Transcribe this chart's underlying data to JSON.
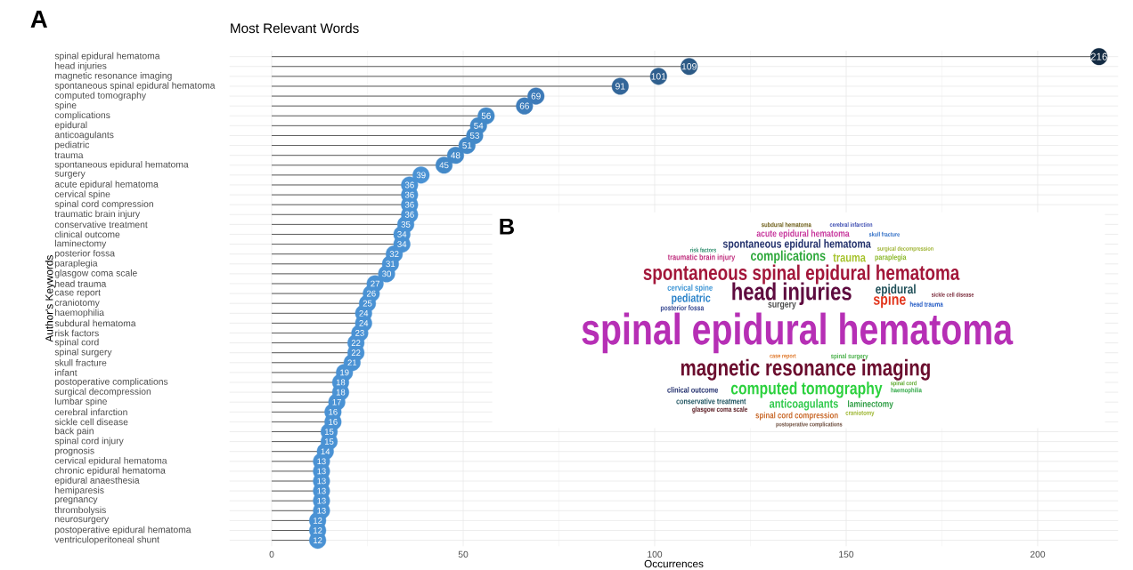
{
  "chart_data": [
    {
      "type": "lollipop",
      "title": "Most Relevant Words",
      "xlabel": "Occurrences",
      "ylabel": "Author's Keywords",
      "annotations": [
        "A"
      ],
      "categories": [
        "spinal epidural hematoma",
        "head injuries",
        "magnetic resonance imaging",
        "spontaneous spinal epidural hematoma",
        "computed tomography",
        "spine",
        "complications",
        "epidural",
        "anticoagulants",
        "pediatric",
        "trauma",
        "spontaneous epidural hematoma",
        "surgery",
        "acute epidural hematoma",
        "cervical spine",
        "spinal cord compression",
        "traumatic brain injury",
        "conservative treatment",
        "clinical outcome",
        "laminectomy",
        "posterior fossa",
        "paraplegia",
        "glasgow coma scale",
        "head trauma",
        "case report",
        "craniotomy",
        "haemophilia",
        "subdural hematoma",
        "risk factors",
        "spinal cord",
        "spinal surgery",
        "skull fracture",
        "infant",
        "postoperative complications",
        "surgical decompression",
        "lumbar spine",
        "cerebral infarction",
        "sickle cell disease",
        "back pain",
        "spinal cord injury",
        "prognosis",
        "cervical epidural hematoma",
        "chronic epidural hematoma",
        "epidural anaesthesia",
        "hemiparesis",
        "pregnancy",
        "thrombolysis",
        "neurosurgery",
        "postoperative epidural hematoma",
        "ventriculoperitoneal shunt"
      ],
      "values": [
        216,
        109,
        101,
        91,
        69,
        66,
        56,
        54,
        53,
        51,
        48,
        45,
        39,
        36,
        36,
        36,
        36,
        35,
        34,
        34,
        32,
        31,
        30,
        27,
        26,
        25,
        24,
        24,
        23,
        22,
        22,
        21,
        19,
        18,
        18,
        17,
        16,
        16,
        15,
        15,
        14,
        13,
        13,
        13,
        13,
        13,
        13,
        12,
        12,
        12
      ],
      "colors": [
        "#132b43",
        "#2c5a86",
        "#2f5f8e",
        "#336699",
        "#3d7ab8",
        "#3e7dbb",
        "#4389c8",
        "#4389c8",
        "#4389c8",
        "#4389c8",
        "#4389c8",
        "#4389c8",
        "#4a92d4",
        "#4a92d4",
        "#4a92d4",
        "#4a92d4",
        "#4a92d4",
        "#4a92d4",
        "#4a92d4",
        "#4a92d4",
        "#4a92d4",
        "#4a92d4",
        "#4a92d4",
        "#4a92d4",
        "#4a92d4",
        "#4a92d4",
        "#4a92d4",
        "#4a92d4",
        "#4a92d4",
        "#4a92d4",
        "#4a92d4",
        "#4a92d4",
        "#4a92d4",
        "#4a92d4",
        "#4a92d4",
        "#4a92d4",
        "#4a92d4",
        "#4a92d4",
        "#4a92d4",
        "#4a92d4",
        "#4a92d4",
        "#4a92d4",
        "#4a92d4",
        "#4a92d4",
        "#4a92d4",
        "#4a92d4",
        "#4a92d4",
        "#4a92d4",
        "#4a92d4",
        "#4a92d4"
      ],
      "value_labels": [
        "216",
        "109",
        "101",
        "91",
        "69",
        "66",
        "56",
        "54",
        "53",
        "51",
        "48",
        "45",
        "39",
        "36",
        "36",
        "36",
        "36",
        "35",
        "34",
        "34",
        "32",
        "31",
        "30",
        "27",
        "26",
        "25",
        "24",
        "24",
        "23",
        "22",
        "22",
        "21",
        "19",
        "18",
        "18",
        "17",
        "16",
        "16",
        "15",
        "15",
        "14",
        "13",
        "13",
        "13",
        "13",
        "13",
        "13",
        "12",
        "12",
        "12"
      ],
      "orientation": "horizontal",
      "xlim": [
        -11,
        221
      ],
      "xticks": [
        {
          "value": 0,
          "label": "0"
        },
        {
          "value": 50,
          "label": "50"
        },
        {
          "value": 100,
          "label": "100"
        },
        {
          "value": 150,
          "label": "150"
        },
        {
          "value": 200,
          "label": "200"
        }
      ],
      "grid": true,
      "marker": "circle"
    },
    {
      "type": "other",
      "annotations": [
        "B",
        "spinal epidural hematoma",
        "magnetic resonance imaging",
        "head injuries",
        "spontaneous spinal epidural hematoma",
        "computed tomography",
        "spine",
        "complications",
        "epidural",
        "anticoagulants",
        "pediatric",
        "trauma",
        "spontaneous epidural hematoma",
        "surgery",
        "acute epidural hematoma",
        "cervical spine",
        "spinal cord compression",
        "traumatic brain injury",
        "conservative treatment",
        "clinical outcome",
        "laminectomy",
        "posterior fossa",
        "paraplegia",
        "glasgow coma scale",
        "head trauma",
        "case report",
        "craniotomy",
        "haemophilia",
        "subdural hematoma",
        "risk factors",
        "spinal cord",
        "skull fracture",
        "spinal surgery",
        "postoperative complications",
        "cerebral infarction",
        "surgical decompression",
        "sickle cell disease"
      ]
    }
  ]
}
